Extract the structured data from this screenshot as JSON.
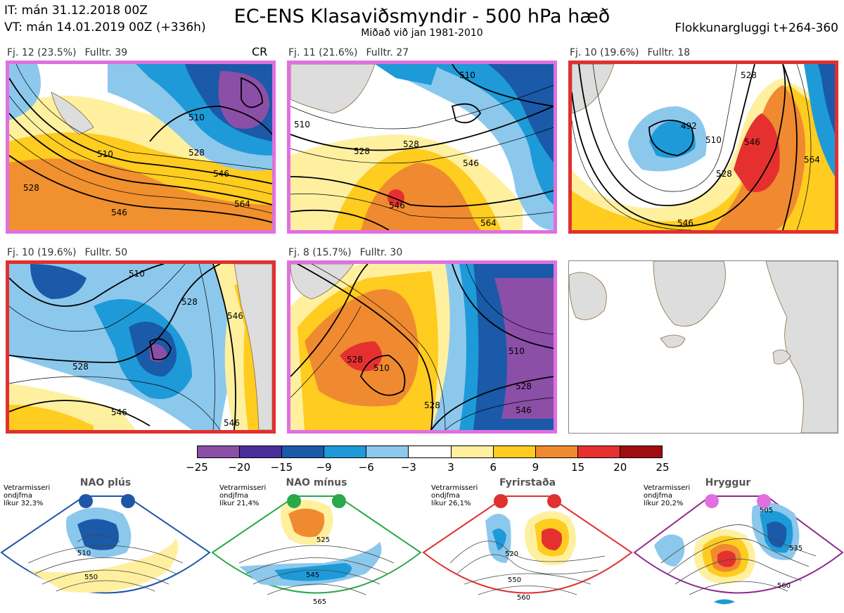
{
  "header": {
    "it_line": "IT: mán 31.12.2018 00Z",
    "vt_line": "VT: mán 14.01.2019 00Z  (+336h)",
    "title": "EC-ENS Klasaviðsmyndir - 500 hPa hæð",
    "subtitle": "Miðað við jan 1981-2010",
    "window": "Flokkunargluggi t+264-360"
  },
  "panels": [
    {
      "cluster": "Fj. 12 (23.5%)",
      "members": "Fulltr. 39",
      "tag": "CR",
      "border": "#e070e0",
      "contour_labels": [
        "510",
        "510",
        "528",
        "546",
        "528",
        "546",
        "564"
      ]
    },
    {
      "cluster": "Fj. 11 (21.6%)",
      "members": "Fulltr. 27",
      "tag": "",
      "border": "#e070e0",
      "contour_labels": [
        "510",
        "510",
        "528",
        "528",
        "546",
        "546",
        "564"
      ]
    },
    {
      "cluster": "Fj. 10 (19.6%)",
      "members": "Fulltr. 18",
      "tag": "",
      "border": "#e03030",
      "contour_labels": [
        "528",
        "492",
        "510",
        "528",
        "546",
        "564",
        "546"
      ]
    },
    {
      "cluster": "Fj. 10 (19.6%)",
      "members": "Fulltr. 50",
      "tag": "",
      "border": "#e03030",
      "contour_labels": [
        "510",
        "528",
        "528",
        "546",
        "546",
        "546"
      ]
    },
    {
      "cluster": "Fj. 8 (15.7%)",
      "members": "Fulltr. 30",
      "tag": "",
      "border": "#e070e0",
      "contour_labels": [
        "528",
        "510",
        "510",
        "528",
        "528",
        "546"
      ]
    }
  ],
  "colorbar": {
    "ticks": [
      "−25",
      "−20",
      "−15",
      "−9",
      "−6",
      "−3",
      "3",
      "6",
      "9",
      "15",
      "20",
      "25"
    ],
    "colors": [
      "#8b4fa8",
      "#4a2d9a",
      "#1a5aa8",
      "#1e9ad8",
      "#8cc8ec",
      "#ffffff",
      "#fff0a0",
      "#ffcc20",
      "#f08a30",
      "#e63030",
      "#a00c10"
    ]
  },
  "regimes": [
    {
      "name": "NAO plús",
      "note": "Vetrarmisseri\nondjfma\nlíkur 32,3%",
      "color": "#1f57a8",
      "labels": [
        "510",
        "550"
      ]
    },
    {
      "name": "NAO mínus",
      "note": "Vetrarmisseri\nondjfma\nlíkur 21,4%",
      "color": "#2aa84a",
      "labels": [
        "525",
        "545",
        "565"
      ]
    },
    {
      "name": "Fyrirstaða",
      "note": "Vetrarmisseri\nondjfma\nlíkur 26,1%",
      "color": "#e03030",
      "labels": [
        "520",
        "550",
        "560"
      ]
    },
    {
      "name": "Hryggur",
      "note": "Vetrarmisseri\nondjfma\nlíkur 20,2%",
      "color": "#e070e0",
      "labels": [
        "505",
        "535",
        "560"
      ]
    }
  ]
}
